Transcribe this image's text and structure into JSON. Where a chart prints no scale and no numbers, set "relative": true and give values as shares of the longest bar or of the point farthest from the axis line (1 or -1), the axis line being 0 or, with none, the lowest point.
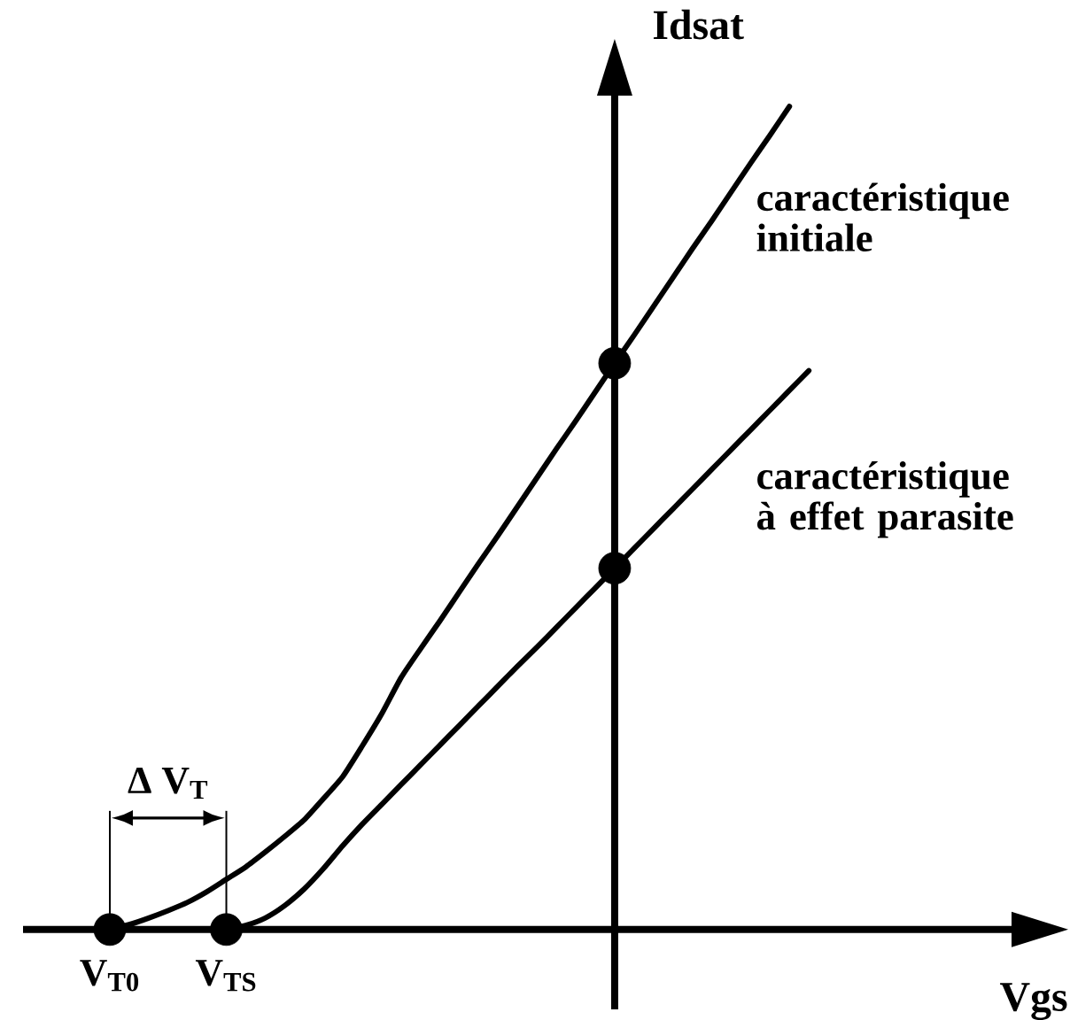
{
  "chart_data": {
    "type": "line",
    "relative": true,
    "xlabel": "Vgs",
    "ylabel": "Idsat",
    "annotations": [
      "Δ V$_{T}$"
    ],
    "categories": [
      null,
      null,
      null,
      null,
      "V$_{T0}$",
      null,
      null,
      null,
      null,
      null,
      "V$_{TS}$",
      null,
      null,
      null,
      null,
      null,
      null,
      null,
      null,
      null,
      null,
      null,
      null,
      null,
      null,
      null,
      null,
      null,
      null,
      null,
      null,
      null,
      null,
      null,
      null,
      null,
      null,
      null,
      null,
      null,
      null,
      null,
      null,
      null,
      null,
      null,
      null,
      null,
      null,
      null,
      null,
      null,
      null,
      null
    ],
    "series": [
      {
        "name": "caractéristique initiale",
        "color": "#000000",
        "values": [
          null,
          null,
          null,
          null,
          0,
          0.006,
          0.014,
          0.023,
          0.033,
          0.046,
          0.061,
          0.076,
          0.094,
          0.113,
          0.133,
          0.159,
          0.186,
          0.223,
          0.262,
          0.306,
          0.341,
          0.375,
          0.41,
          0.445,
          0.479,
          0.514,
          0.549,
          0.584,
          0.618,
          0.653,
          0.688,
          0.722,
          0.757,
          0.792,
          0.827,
          0.861,
          0.896,
          0.931,
          0.965,
          1,
          null,
          null,
          null,
          null,
          null,
          null,
          null,
          null,
          null,
          null,
          null,
          null,
          null,
          null
        ]
      },
      {
        "name": "caractéristique à effet parasite",
        "color": "#000000",
        "values": [
          null,
          null,
          null,
          null,
          null,
          null,
          null,
          null,
          null,
          null,
          0,
          0.005,
          0.014,
          0.029,
          0.049,
          0.074,
          0.102,
          0.128,
          0.152,
          0.176,
          0.2,
          0.224,
          0.248,
          0.272,
          0.296,
          0.32,
          0.343,
          0.367,
          0.391,
          0.415,
          0.439,
          0.463,
          0.487,
          0.511,
          0.535,
          0.559,
          0.583,
          0.607,
          0.631,
          0.655,
          0.679,
          null,
          null,
          null,
          null,
          null,
          null,
          null,
          null,
          null,
          null,
          null,
          null,
          null
        ]
      },
      {
        "type": "scatter",
        "marker": "circle",
        "color": "#000000",
        "values": [
          null,
          null,
          null,
          null,
          0,
          null,
          null,
          null,
          null,
          null,
          null,
          null,
          null,
          null,
          null,
          null,
          null,
          null,
          null,
          null,
          null,
          null,
          null,
          null,
          null,
          null,
          null,
          null,
          null,
          null,
          0.688,
          null,
          null,
          null,
          null,
          null,
          null,
          null,
          null,
          null,
          null,
          null,
          null,
          null,
          null,
          null,
          null,
          null,
          null,
          null,
          null,
          null,
          null,
          null
        ]
      },
      {
        "type": "scatter",
        "marker": "circle",
        "color": "#000000",
        "values": [
          null,
          null,
          null,
          null,
          null,
          null,
          null,
          null,
          null,
          null,
          0,
          null,
          null,
          null,
          null,
          null,
          null,
          null,
          null,
          null,
          null,
          null,
          null,
          null,
          null,
          null,
          null,
          null,
          null,
          null,
          0.439,
          null,
          null,
          null,
          null,
          null,
          null,
          null,
          null,
          null,
          null,
          null,
          null,
          null,
          null,
          null,
          null,
          null,
          null,
          null,
          null,
          null,
          null,
          null
        ]
      }
    ]
  }
}
